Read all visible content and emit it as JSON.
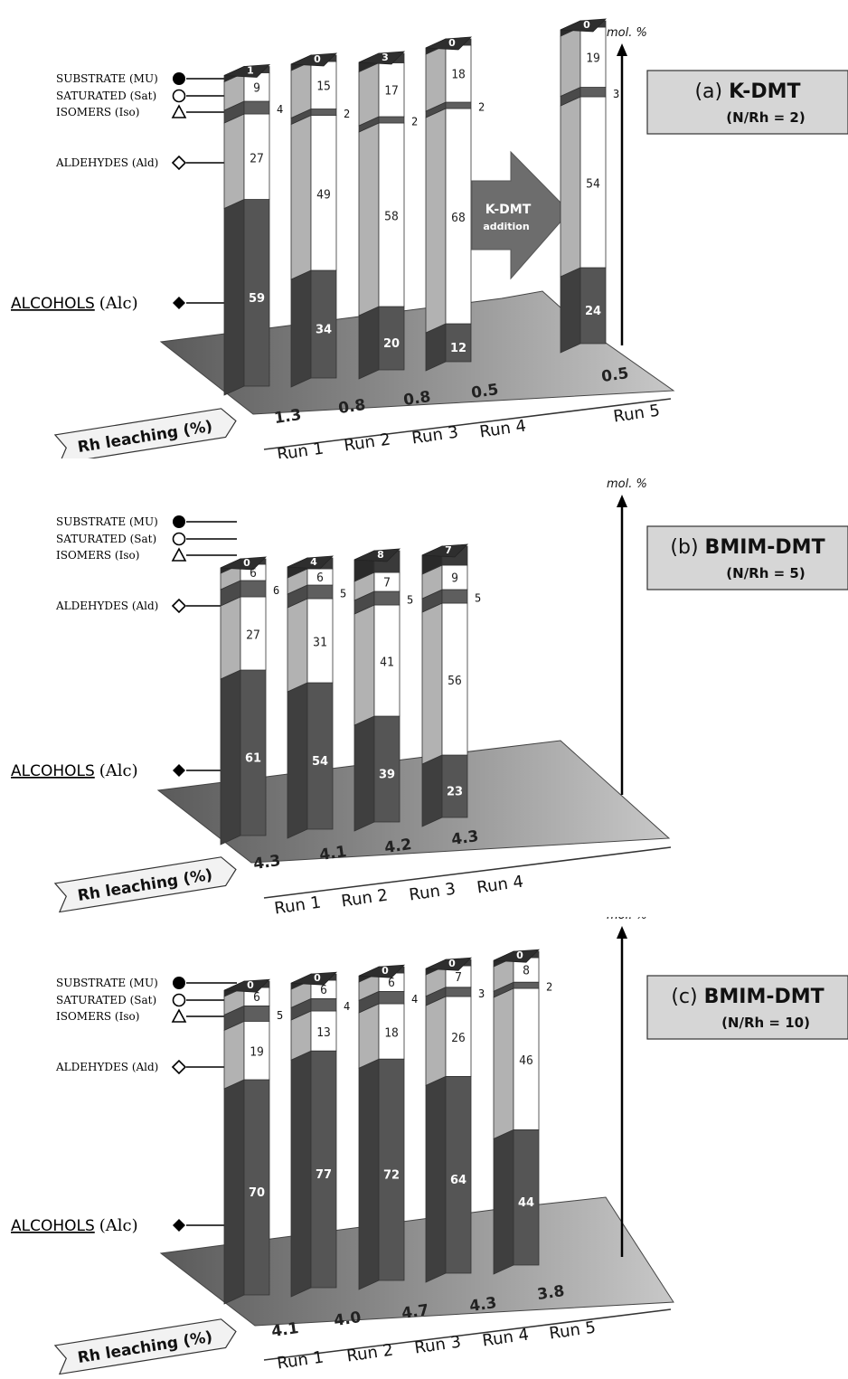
{
  "legend": {
    "substrate": "SUBSTRATE (MU)",
    "saturated": "SATURATED (Sat)",
    "isomers": "ISOMERS (Iso)",
    "aldehydes": "ALDEHYDES (Ald)",
    "alcohols_word": "ALCOHOLS",
    "alcohols_abbr": "(Alc)"
  },
  "common": {
    "yunit": "mol. %",
    "rh_leaching_label": "Rh leaching (%)"
  },
  "arrow_label": {
    "line1": "K-DMT",
    "line2": "addition"
  },
  "colors": {
    "alcohols": "#555555",
    "aldehydes_side": "#b2b2b2",
    "front_light": "#ffffff",
    "isomers": "#5e5e5e",
    "substrate": "#3a3a3a",
    "platform": "#8a8a8a",
    "title_box": "#d6d6d6"
  },
  "chart_data": [
    {
      "type": "bar",
      "stacked": true,
      "panel_title": "(a)",
      "catalyst": "K-DMT",
      "ratio": "(N/Rh = 2)",
      "categories": [
        "Run 1",
        "Run 2",
        "Run 3",
        "Run 4",
        "Run 5"
      ],
      "series": [
        {
          "name": "ALCOHOLS (Alc)",
          "values": [
            59,
            34,
            20,
            12,
            24
          ]
        },
        {
          "name": "ALDEHYDES (Ald)",
          "values": [
            27,
            49,
            58,
            68,
            54
          ]
        },
        {
          "name": "ISOMERS (Iso)",
          "values": [
            4,
            2,
            2,
            2,
            3
          ]
        },
        {
          "name": "SATURATED (Sat)",
          "values": [
            9,
            15,
            17,
            18,
            19
          ]
        },
        {
          "name": "SUBSTRATE (MU)",
          "values": [
            1,
            0,
            3,
            0,
            0
          ]
        }
      ],
      "rh_leaching": [
        "1.3",
        "0.8",
        "0.8",
        "0.5",
        "0.5"
      ],
      "ylabel": "mol. %",
      "annotation": "K-DMT addition"
    },
    {
      "type": "bar",
      "stacked": true,
      "panel_title": "(b)",
      "catalyst": "BMIM-DMT",
      "ratio": "(N/Rh = 5)",
      "categories": [
        "Run 1",
        "Run 2",
        "Run 3",
        "Run 4"
      ],
      "series": [
        {
          "name": "ALCOHOLS (Alc)",
          "values": [
            61,
            54,
            39,
            23
          ]
        },
        {
          "name": "ALDEHYDES (Ald)",
          "values": [
            27,
            31,
            41,
            56
          ]
        },
        {
          "name": "ISOMERS (Iso)",
          "values": [
            6,
            5,
            5,
            5
          ]
        },
        {
          "name": "SATURATED (Sat)",
          "values": [
            6,
            6,
            7,
            9
          ]
        },
        {
          "name": "SUBSTRATE (MU)",
          "values": [
            0,
            4,
            8,
            7
          ]
        }
      ],
      "rh_leaching": [
        "4.3",
        "4.1",
        "4.2",
        "4.3"
      ],
      "ylabel": "mol. %"
    },
    {
      "type": "bar",
      "stacked": true,
      "panel_title": "(c)",
      "catalyst": "BMIM-DMT",
      "ratio": "(N/Rh = 10)",
      "categories": [
        "Run 1",
        "Run 2",
        "Run 3",
        "Run 4",
        "Run 5"
      ],
      "series": [
        {
          "name": "ALCOHOLS (Alc)",
          "values": [
            70,
            77,
            72,
            64,
            44
          ]
        },
        {
          "name": "ALDEHYDES (Ald)",
          "values": [
            19,
            13,
            18,
            26,
            46
          ]
        },
        {
          "name": "ISOMERS (Iso)",
          "values": [
            5,
            4,
            4,
            3,
            2
          ]
        },
        {
          "name": "SATURATED (Sat)",
          "values": [
            6,
            6,
            6,
            7,
            8
          ]
        },
        {
          "name": "SUBSTRATE (MU)",
          "values": [
            0,
            0,
            0,
            0,
            0
          ]
        }
      ],
      "rh_leaching": [
        "4.1",
        "4.0",
        "4.7",
        "4.3",
        "3.8"
      ],
      "ylabel": "mol. %"
    }
  ]
}
